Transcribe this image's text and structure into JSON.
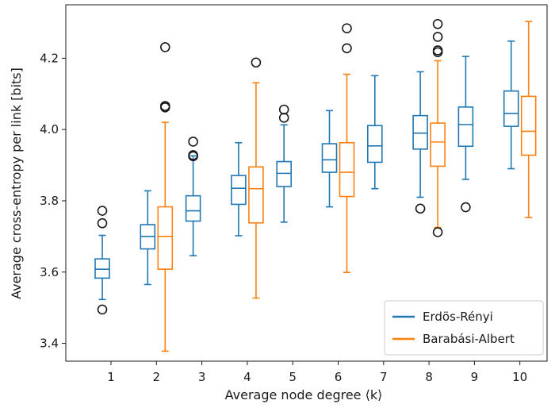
{
  "chart_data": {
    "type": "box",
    "xlabel": "Average node degree ⟨k⟩",
    "ylabel": "Average cross-entropy per link [bits]",
    "categories": [
      "1",
      "2",
      "3",
      "4",
      "5",
      "6",
      "7",
      "8",
      "9",
      "10"
    ],
    "ylim": [
      3.35,
      4.35
    ],
    "yticks": [
      3.4,
      3.6,
      3.8,
      4.0,
      4.2
    ],
    "ytick_labels": [
      "3.4",
      "3.6",
      "3.8",
      "4.0",
      "4.2"
    ],
    "grid": false,
    "legend": {
      "position": "bottom-right"
    },
    "series": [
      {
        "name": "Erdös-Rényi",
        "color": "#1f77b4",
        "boxes": [
          {
            "whislo": 3.523,
            "q1": 3.583,
            "med": 3.608,
            "q3": 3.637,
            "whishi": 3.703,
            "fliers": [
              3.772,
              3.737,
              3.495
            ]
          },
          {
            "whislo": 3.565,
            "q1": 3.665,
            "med": 3.7,
            "q3": 3.733,
            "whishi": 3.828,
            "fliers": []
          },
          {
            "whislo": 3.646,
            "q1": 3.743,
            "med": 3.772,
            "q3": 3.814,
            "whishi": 3.926,
            "fliers": [
              3.966,
              3.928,
              3.925
            ]
          },
          {
            "whislo": 3.702,
            "q1": 3.79,
            "med": 3.835,
            "q3": 3.871,
            "whishi": 3.963,
            "fliers": []
          },
          {
            "whislo": 3.74,
            "q1": 3.84,
            "med": 3.877,
            "q3": 3.91,
            "whishi": 4.013,
            "fliers": [
              4.056,
              4.033
            ]
          },
          {
            "whislo": 3.783,
            "q1": 3.88,
            "med": 3.915,
            "q3": 3.96,
            "whishi": 4.053,
            "fliers": []
          },
          {
            "whislo": 3.834,
            "q1": 3.908,
            "med": 3.954,
            "q3": 4.011,
            "whishi": 4.151,
            "fliers": []
          },
          {
            "whislo": 3.81,
            "q1": 3.945,
            "med": 3.99,
            "q3": 4.039,
            "whishi": 4.162,
            "fliers": [
              3.778
            ]
          },
          {
            "whislo": 3.86,
            "q1": 3.953,
            "med": 4.014,
            "q3": 4.063,
            "whishi": 4.205,
            "fliers": [
              3.782
            ]
          },
          {
            "whislo": 3.89,
            "q1": 4.009,
            "med": 4.045,
            "q3": 4.108,
            "whishi": 4.248,
            "fliers": []
          }
        ]
      },
      {
        "name": "Barabási-Albert",
        "color": "#ff7f0e",
        "boxes": [
          {
            "whislo": null,
            "q1": null,
            "med": null,
            "q3": null,
            "whishi": null,
            "fliers": []
          },
          {
            "whislo": 3.378,
            "q1": 3.608,
            "med": 3.7,
            "q3": 3.783,
            "whishi": 4.02,
            "fliers": [
              4.231,
              4.066,
              4.062
            ]
          },
          {
            "whislo": null,
            "q1": null,
            "med": null,
            "q3": null,
            "whishi": null,
            "fliers": []
          },
          {
            "whislo": 3.527,
            "q1": 3.738,
            "med": 3.834,
            "q3": 3.895,
            "whishi": 4.131,
            "fliers": [
              4.188
            ]
          },
          {
            "whislo": null,
            "q1": null,
            "med": null,
            "q3": null,
            "whishi": null,
            "fliers": []
          },
          {
            "whislo": 3.599,
            "q1": 3.812,
            "med": 3.88,
            "q3": 3.963,
            "whishi": 4.155,
            "fliers": [
              4.284,
              4.228
            ]
          },
          {
            "whislo": null,
            "q1": null,
            "med": null,
            "q3": null,
            "whishi": null,
            "fliers": []
          },
          {
            "whislo": 3.725,
            "q1": 3.897,
            "med": 3.965,
            "q3": 4.018,
            "whishi": 4.193,
            "fliers": [
              4.296,
              4.26,
              4.222,
              4.217,
              3.712
            ]
          },
          {
            "whislo": null,
            "q1": null,
            "med": null,
            "q3": null,
            "whishi": null,
            "fliers": []
          },
          {
            "whislo": 3.753,
            "q1": 3.928,
            "med": 3.995,
            "q3": 4.093,
            "whishi": 4.303,
            "fliers": []
          }
        ]
      }
    ]
  }
}
